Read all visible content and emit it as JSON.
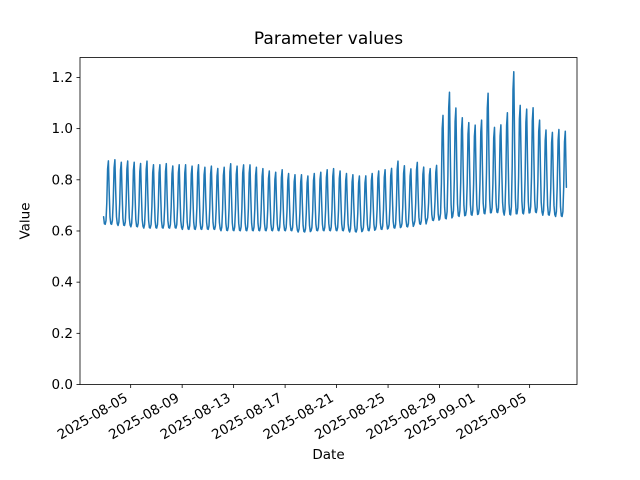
{
  "chart_data": {
    "type": "line",
    "title": "Parameter values",
    "xlabel": "Date",
    "ylabel": "Value",
    "grid": false,
    "legend": "none",
    "background": "#ffffff",
    "line_color": "#1f77b4",
    "line_width": 1.5,
    "ylim": [
      0.0,
      1.278
    ],
    "y_ticks": [
      "0.0",
      "0.2",
      "0.4",
      "0.6",
      "0.8",
      "1.0",
      "1.2"
    ],
    "xlim": [
      "2025-08-01T01:30",
      "2025-09-08T16:20"
    ],
    "x_ticks": [
      "2025-08-05",
      "2025-08-09",
      "2025-08-13",
      "2025-08-17",
      "2025-08-21",
      "2025-08-25",
      "2025-08-29",
      "2025-09-01",
      "2025-09-05"
    ],
    "x_tick_rotation_deg": 30,
    "series": {
      "name": "parameter-values",
      "start": "2025-08-02T21:30",
      "end": "2025-09-07T20:30",
      "cycles_per_day": 2,
      "peak_half_width_days": 0.07,
      "daily_envelope": [
        {
          "date": "2025-08-03",
          "peaks": [
            0.885,
            0.89
          ],
          "trough": 0.625
        },
        {
          "date": "2025-08-04",
          "peaks": [
            0.88,
            0.885
          ],
          "trough": 0.62
        },
        {
          "date": "2025-08-05",
          "peaks": [
            0.88,
            0.875
          ],
          "trough": 0.615
        },
        {
          "date": "2025-08-06",
          "peaks": [
            0.885,
            0.87
          ],
          "trough": 0.61
        },
        {
          "date": "2025-08-07",
          "peaks": [
            0.87,
            0.875
          ],
          "trough": 0.61
        },
        {
          "date": "2025-08-08",
          "peaks": [
            0.865,
            0.87
          ],
          "trough": 0.61
        },
        {
          "date": "2025-08-09",
          "peaks": [
            0.87,
            0.865
          ],
          "trough": 0.605
        },
        {
          "date": "2025-08-10",
          "peaks": [
            0.87,
            0.86
          ],
          "trough": 0.605
        },
        {
          "date": "2025-08-11",
          "peaks": [
            0.865,
            0.855
          ],
          "trough": 0.605
        },
        {
          "date": "2025-08-12",
          "peaks": [
            0.86,
            0.875
          ],
          "trough": 0.6
        },
        {
          "date": "2025-08-13",
          "peaks": [
            0.865,
            0.87
          ],
          "trough": 0.6
        },
        {
          "date": "2025-08-14",
          "peaks": [
            0.87,
            0.86
          ],
          "trough": 0.6
        },
        {
          "date": "2025-08-15",
          "peaks": [
            0.855,
            0.845
          ],
          "trough": 0.6
        },
        {
          "date": "2025-08-16",
          "peaks": [
            0.84,
            0.85
          ],
          "trough": 0.6
        },
        {
          "date": "2025-08-17",
          "peaks": [
            0.835,
            0.83
          ],
          "trough": 0.6
        },
        {
          "date": "2025-08-18",
          "peaks": [
            0.83,
            0.825
          ],
          "trough": 0.595
        },
        {
          "date": "2025-08-19",
          "peaks": [
            0.835,
            0.84
          ],
          "trough": 0.6
        },
        {
          "date": "2025-08-20",
          "peaks": [
            0.85,
            0.855
          ],
          "trough": 0.6
        },
        {
          "date": "2025-08-21",
          "peaks": [
            0.845,
            0.835
          ],
          "trough": 0.6
        },
        {
          "date": "2025-08-22",
          "peaks": [
            0.83,
            0.825
          ],
          "trough": 0.595
        },
        {
          "date": "2025-08-23",
          "peaks": [
            0.825,
            0.835
          ],
          "trough": 0.6
        },
        {
          "date": "2025-08-24",
          "peaks": [
            0.845,
            0.85
          ],
          "trough": 0.605
        },
        {
          "date": "2025-08-25",
          "peaks": [
            0.855,
            0.885
          ],
          "trough": 0.61
        },
        {
          "date": "2025-08-26",
          "peaks": [
            0.866,
            0.853
          ],
          "trough": 0.615
        },
        {
          "date": "2025-08-27",
          "peaks": [
            0.879,
            0.86
          ],
          "trough": 0.625
        },
        {
          "date": "2025-08-28",
          "peaks": [
            0.853,
            0.866
          ],
          "trough": 0.64
        },
        {
          "date": "2025-08-29",
          "peaks": [
            1.07,
            1.165
          ],
          "trough": 0.645
        },
        {
          "date": "2025-08-30",
          "peaks": [
            1.1,
            1.06
          ],
          "trough": 0.655
        },
        {
          "date": "2025-08-31",
          "peaks": [
            1.04,
            1.03
          ],
          "trough": 0.66
        },
        {
          "date": "2025-09-01",
          "peaks": [
            1.05,
            1.16
          ],
          "trough": 0.665
        },
        {
          "date": "2025-09-02",
          "peaks": [
            1.02,
            1.03
          ],
          "trough": 0.67
        },
        {
          "date": "2025-09-03",
          "peaks": [
            1.08,
            1.248
          ],
          "trough": 0.66
        },
        {
          "date": "2025-09-04",
          "peaks": [
            1.11,
            1.095
          ],
          "trough": 0.665
        },
        {
          "date": "2025-09-05",
          "peaks": [
            1.1,
            1.05
          ],
          "trough": 0.67
        },
        {
          "date": "2025-09-06",
          "peaks": [
            1.01,
            1.0
          ],
          "trough": 0.66
        },
        {
          "date": "2025-09-07",
          "peaks": [
            1.012,
            1.005
          ],
          "trough": 0.655
        }
      ]
    }
  }
}
